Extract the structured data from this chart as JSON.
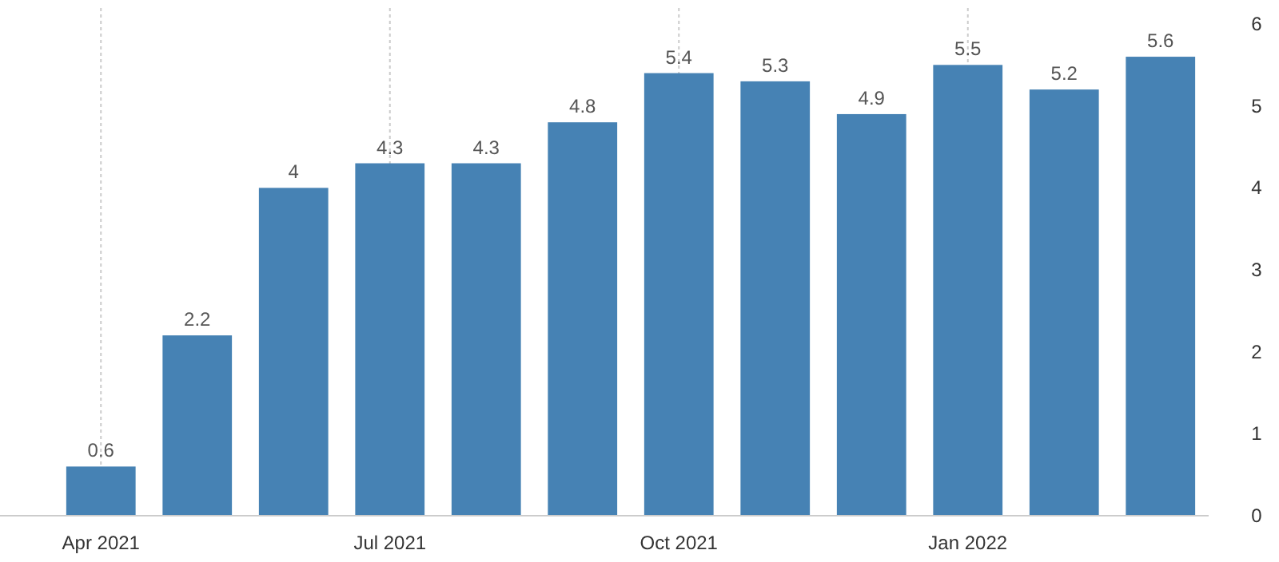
{
  "chart_data": {
    "type": "bar",
    "categories": [
      "Apr 2021",
      null,
      null,
      "Jul 2021",
      null,
      null,
      "Oct 2021",
      null,
      null,
      "Jan 2022",
      null,
      null
    ],
    "values": [
      0.6,
      2.2,
      4,
      4.3,
      4.3,
      4.8,
      5.4,
      5.3,
      4.9,
      5.5,
      5.2,
      5.6
    ],
    "color": "#4682b4",
    "ylim": [
      0,
      6
    ],
    "yticks": [
      0,
      1,
      2,
      3,
      4,
      5,
      6
    ],
    "grid": "x",
    "data_labels": true
  }
}
